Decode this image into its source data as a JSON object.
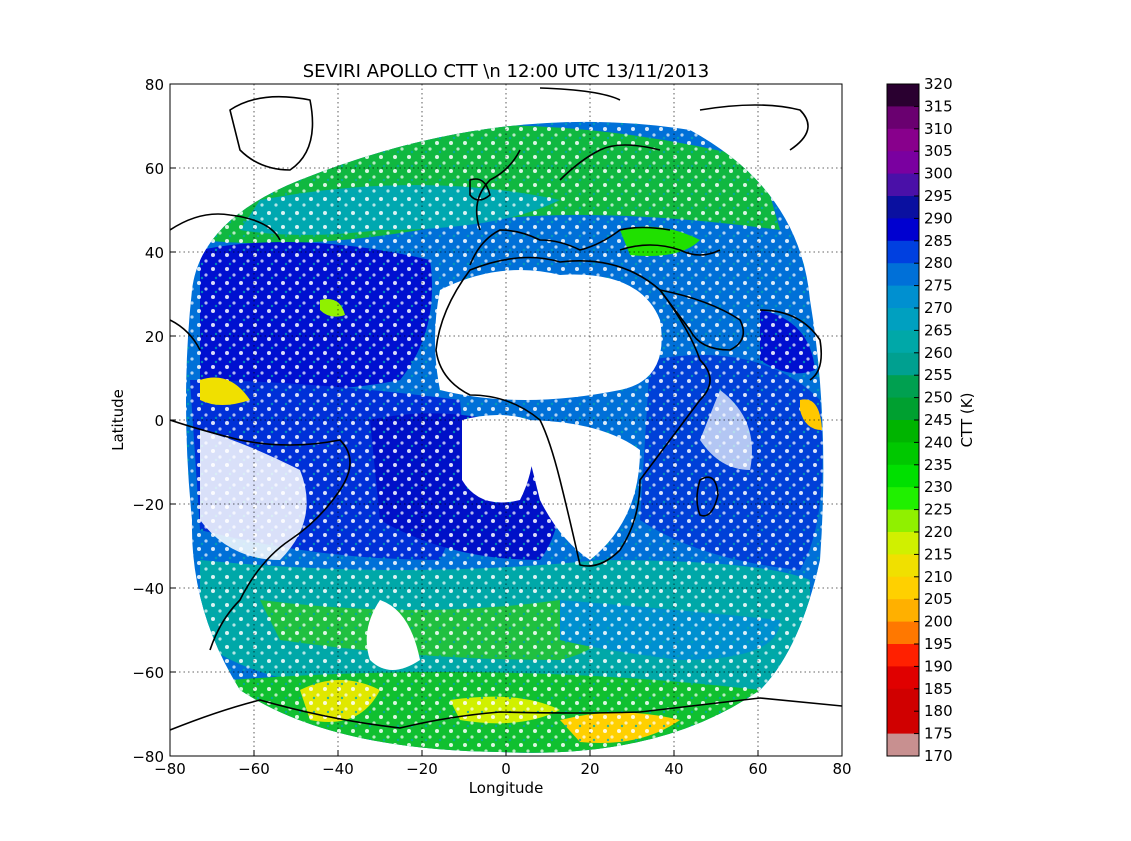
{
  "title": "SEVIRI APOLLO CTT \\n 12:00 UTC 13/11/2013",
  "xlabel": "Longitude",
  "ylabel": "Latitude",
  "x_ticks": [
    "−80",
    "−60",
    "−40",
    "−20",
    "0",
    "20",
    "40",
    "60",
    "80"
  ],
  "y_ticks": [
    "80",
    "60",
    "40",
    "20",
    "0",
    "−20",
    "−40",
    "−60",
    "−80"
  ],
  "colorbar": {
    "label": "CTT (K)",
    "ticks": [
      "320",
      "315",
      "310",
      "305",
      "300",
      "295",
      "290",
      "285",
      "280",
      "275",
      "270",
      "265",
      "260",
      "255",
      "250",
      "245",
      "240",
      "235",
      "230",
      "225",
      "220",
      "215",
      "210",
      "205",
      "200",
      "195",
      "190",
      "185",
      "180",
      "175",
      "170"
    ],
    "colors": [
      "#2a0030",
      "#6a0070",
      "#88008c",
      "#7a00a0",
      "#4a10a8",
      "#0a10a0",
      "#0000d0",
      "#0040e0",
      "#0070d8",
      "#0090d0",
      "#00a0c0",
      "#00a8a8",
      "#00a090",
      "#00a050",
      "#00a030",
      "#00b400",
      "#00c800",
      "#00e000",
      "#20f000",
      "#90f000",
      "#d0f000",
      "#f0e000",
      "#ffd000",
      "#ffb000",
      "#ff7800",
      "#ff2000",
      "#e00000",
      "#d00000",
      "#d00000",
      "#c89090"
    ]
  },
  "map_colors": {
    "land_lines": "#000000",
    "deep_blue": "#0010d0",
    "blue": "#0060d8",
    "teal": "#00a8b0",
    "green": "#10c030",
    "yellow": "#e0e800",
    "orange": "#ffc800"
  },
  "chart_data": {
    "type": "heatmap",
    "title": "SEVIRI APOLLO CTT \\n 12:00 UTC 13/11/2013",
    "xlabel": "Longitude",
    "ylabel": "Latitude",
    "xlim": [
      -80,
      80
    ],
    "ylim": [
      -80,
      80
    ],
    "x_ticks": [
      -80,
      -60,
      -40,
      -20,
      0,
      20,
      40,
      60,
      80
    ],
    "y_ticks": [
      -80,
      -60,
      -40,
      -20,
      0,
      20,
      40,
      60,
      80
    ],
    "grid": true,
    "colorbar_range": [
      170,
      320
    ],
    "colorbar_step": 5,
    "colorbar_label": "CTT (K)"
  }
}
